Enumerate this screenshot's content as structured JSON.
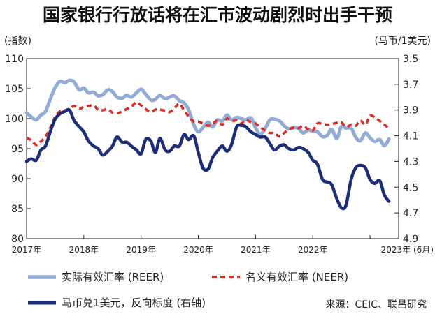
{
  "chart_data": {
    "type": "line",
    "title": "国家银行行放话将在汇市波动剧烈时出手干预",
    "left_axis_label": "(指数)",
    "right_axis_label": "(马币/1美元)",
    "left_ylim": [
      80,
      110
    ],
    "left_ticks": [
      "110",
      "105",
      "100",
      "95",
      "90",
      "85",
      "80"
    ],
    "right_ylim": [
      3.5,
      4.9
    ],
    "right_ticks": [
      "3.5",
      "3.7",
      "3.9",
      "4.1",
      "4.3",
      "4.5",
      "4.7",
      "4.9"
    ],
    "right_reversed": true,
    "x_ticks": [
      "2017年",
      "2018年",
      "2019年",
      "2020年",
      "2021年",
      "2022年",
      "2023年 (6月)"
    ],
    "x_range": [
      2017.0,
      2023.5
    ],
    "series": [
      {
        "name": "实际有效汇率 (REER)",
        "axis": "left",
        "style": "solid",
        "color": "#93acd6",
        "x": [
          2017.0,
          2017.08,
          2017.17,
          2017.25,
          2017.33,
          2017.42,
          2017.5,
          2017.58,
          2017.67,
          2017.75,
          2017.83,
          2017.92,
          2018.0,
          2018.08,
          2018.17,
          2018.25,
          2018.33,
          2018.42,
          2018.5,
          2018.58,
          2018.67,
          2018.75,
          2018.83,
          2018.92,
          2019.0,
          2019.08,
          2019.17,
          2019.25,
          2019.33,
          2019.42,
          2019.5,
          2019.58,
          2019.67,
          2019.75,
          2019.83,
          2019.92,
          2020.0,
          2020.08,
          2020.17,
          2020.25,
          2020.33,
          2020.42,
          2020.5,
          2020.58,
          2020.67,
          2020.75,
          2020.83,
          2020.92,
          2021.0,
          2021.08,
          2021.17,
          2021.25,
          2021.33,
          2021.42,
          2021.5,
          2021.58,
          2021.67,
          2021.75,
          2021.83,
          2021.92,
          2022.0,
          2022.08,
          2022.17,
          2022.25,
          2022.33,
          2022.42,
          2022.5,
          2022.58,
          2022.67,
          2022.75,
          2022.83,
          2022.92,
          2023.0,
          2023.08,
          2023.17,
          2023.25,
          2023.33
        ],
        "values": [
          101.0,
          100.3,
          99.8,
          100.6,
          101.2,
          103.4,
          105.2,
          106.2,
          106.0,
          106.4,
          106.1,
          104.8,
          105.1,
          104.3,
          104.4,
          103.8,
          104.0,
          104.8,
          104.5,
          103.6,
          103.4,
          103.9,
          103.6,
          104.3,
          104.9,
          104.1,
          103.1,
          103.2,
          103.9,
          103.3,
          103.6,
          103.8,
          103.0,
          102.6,
          101.5,
          99.0,
          97.8,
          98.5,
          99.4,
          98.6,
          99.8,
          99.6,
          100.6,
          99.8,
          100.2,
          100.0,
          99.8,
          100.1,
          98.5,
          97.4,
          98.4,
          99.8,
          99.9,
          99.6,
          98.8,
          98.3,
          98.5,
          98.4,
          97.6,
          98.1,
          97.9,
          97.8,
          97.0,
          97.2,
          98.2,
          96.7,
          98.7,
          98.4,
          98.4,
          96.9,
          96.3,
          97.6,
          96.8,
          96.2,
          96.5,
          95.5,
          96.6
        ]
      },
      {
        "name": "名义有效汇率 (NEER)",
        "axis": "left",
        "style": "dashed",
        "color": "#e02a22",
        "x": [
          2017.0,
          2017.08,
          2017.17,
          2017.25,
          2017.33,
          2017.42,
          2017.5,
          2017.58,
          2017.67,
          2017.75,
          2017.83,
          2017.92,
          2018.0,
          2018.08,
          2018.17,
          2018.25,
          2018.33,
          2018.42,
          2018.5,
          2018.58,
          2018.67,
          2018.75,
          2018.83,
          2018.92,
          2019.0,
          2019.08,
          2019.17,
          2019.25,
          2019.33,
          2019.42,
          2019.5,
          2019.58,
          2019.67,
          2019.75,
          2019.83,
          2019.92,
          2020.0,
          2020.08,
          2020.17,
          2020.25,
          2020.33,
          2020.42,
          2020.5,
          2020.58,
          2020.67,
          2020.75,
          2020.83,
          2020.92,
          2021.0,
          2021.08,
          2021.17,
          2021.25,
          2021.33,
          2021.42,
          2021.5,
          2021.58,
          2021.67,
          2021.75,
          2021.83,
          2021.92,
          2022.0,
          2022.08,
          2022.17,
          2022.25,
          2022.33,
          2022.42,
          2022.5,
          2022.58,
          2022.67,
          2022.75,
          2022.83,
          2022.92,
          2023.0,
          2023.08,
          2023.17,
          2023.25,
          2023.33
        ],
        "values": [
          96.8,
          96.4,
          95.6,
          96.2,
          97.0,
          98.6,
          100.3,
          101.2,
          101.4,
          101.6,
          102.1,
          101.6,
          102.0,
          102.1,
          102.2,
          101.5,
          101.4,
          101.6,
          101.0,
          100.9,
          101.2,
          101.6,
          102.0,
          102.7,
          102.2,
          101.6,
          101.1,
          101.5,
          101.5,
          101.3,
          101.1,
          101.7,
          102.5,
          101.4,
          100.4,
          99.5,
          99.5,
          99.2,
          98.8,
          99.2,
          99.6,
          99.0,
          100.0,
          99.6,
          99.7,
          99.2,
          99.8,
          99.4,
          99.2,
          98.6,
          98.0,
          97.6,
          97.6,
          97.0,
          97.6,
          98.2,
          98.5,
          98.4,
          98.8,
          98.2,
          98.0,
          99.2,
          99.1,
          99.0,
          99.1,
          99.3,
          99.4,
          98.6,
          99.0,
          98.8,
          99.7,
          99.0,
          100.5,
          100.2,
          99.6,
          99.0,
          98.4
        ]
      },
      {
        "name": "马币兑1美元，反向标度 (右轴)",
        "axis": "right",
        "style": "solid",
        "color": "#1d2d78",
        "x": [
          2017.0,
          2017.08,
          2017.17,
          2017.25,
          2017.33,
          2017.42,
          2017.5,
          2017.58,
          2017.67,
          2017.75,
          2017.83,
          2017.92,
          2018.0,
          2018.08,
          2018.17,
          2018.25,
          2018.33,
          2018.42,
          2018.5,
          2018.58,
          2018.67,
          2018.75,
          2018.83,
          2018.92,
          2019.0,
          2019.08,
          2019.17,
          2019.25,
          2019.33,
          2019.42,
          2019.5,
          2019.58,
          2019.67,
          2019.75,
          2019.83,
          2019.92,
          2020.0,
          2020.08,
          2020.17,
          2020.25,
          2020.33,
          2020.42,
          2020.5,
          2020.58,
          2020.67,
          2020.75,
          2020.83,
          2020.92,
          2021.0,
          2021.08,
          2021.17,
          2021.25,
          2021.33,
          2021.42,
          2021.5,
          2021.58,
          2021.67,
          2021.75,
          2021.83,
          2021.92,
          2022.0,
          2022.08,
          2022.17,
          2022.25,
          2022.33,
          2022.42,
          2022.5,
          2022.58,
          2022.67,
          2022.75,
          2022.83,
          2022.92,
          2023.0,
          2023.08,
          2023.17,
          2023.25,
          2023.33
        ],
        "values": [
          4.3,
          4.28,
          4.29,
          4.21,
          4.18,
          4.06,
          3.97,
          3.93,
          3.91,
          3.9,
          3.98,
          4.03,
          4.07,
          4.14,
          4.18,
          4.2,
          4.25,
          4.22,
          4.18,
          4.11,
          4.15,
          4.15,
          4.18,
          4.21,
          4.24,
          4.13,
          4.14,
          4.23,
          4.12,
          4.21,
          4.22,
          4.18,
          4.18,
          4.09,
          4.13,
          4.1,
          4.23,
          4.35,
          4.36,
          4.27,
          4.22,
          4.18,
          4.22,
          4.17,
          4.03,
          4.02,
          4.03,
          4.07,
          4.09,
          4.11,
          4.11,
          4.16,
          4.21,
          4.18,
          4.17,
          4.2,
          4.21,
          4.19,
          4.2,
          4.23,
          4.29,
          4.32,
          4.44,
          4.46,
          4.48,
          4.59,
          4.66,
          4.64,
          4.44,
          4.35,
          4.33,
          4.35,
          4.44,
          4.47,
          4.45,
          4.56,
          4.61
        ]
      }
    ],
    "source": "来源：CEIC、联昌研究"
  }
}
